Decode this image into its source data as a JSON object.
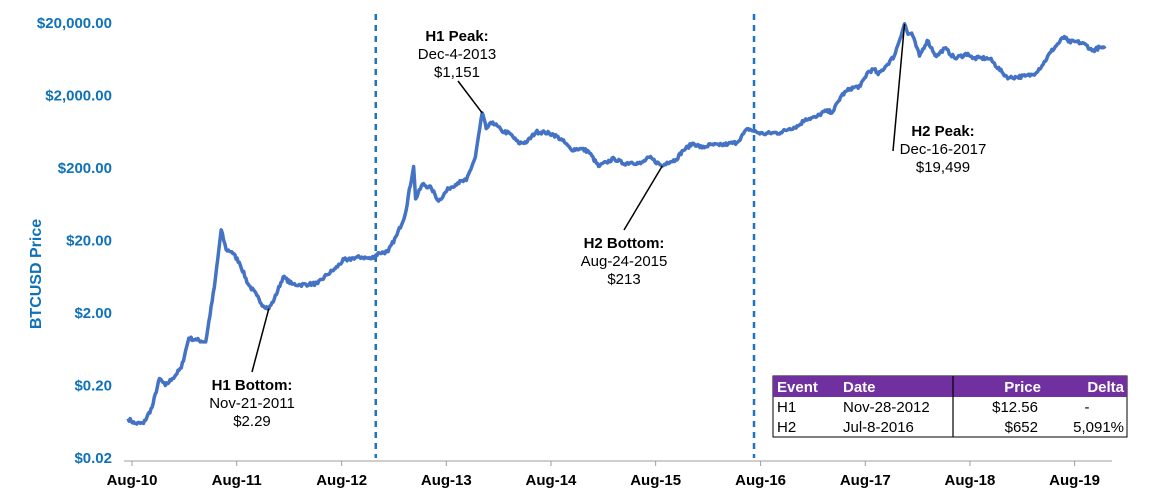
{
  "chart_data": {
    "type": "line",
    "ylabel": "BTCUSD Price",
    "yscale": "log",
    "ylim": [
      0.02,
      20000
    ],
    "y_ticks": [
      0.02,
      0.2,
      2,
      20,
      200,
      2000,
      20000
    ],
    "y_tick_labels": [
      "$0.02",
      "$0.20",
      "$2.00",
      "$20.00",
      "$200.00",
      "$2,000.00",
      "$20,000.00"
    ],
    "x_tick_labels": [
      "Aug-10",
      "Aug-11",
      "Aug-12",
      "Aug-13",
      "Aug-14",
      "Aug-15",
      "Aug-16",
      "Aug-17",
      "Aug-18",
      "Aug-19"
    ],
    "x_ticks": [
      "2010-08-01",
      "2011-08-01",
      "2012-08-01",
      "2013-08-01",
      "2014-08-01",
      "2015-08-01",
      "2016-08-01",
      "2017-08-01",
      "2018-08-01",
      "2019-08-01"
    ],
    "xlim": [
      "2010-07-18",
      "2019-11-15"
    ],
    "line_color": "#4472c4",
    "vline_color": "#1f74c0",
    "vlines": [
      "2012-11-28",
      "2016-07-09"
    ],
    "series": [
      {
        "x": [
          "2010-07-18",
          "2010-08-10",
          "2010-09-10",
          "2010-10-10",
          "2010-11-05",
          "2010-11-25",
          "2010-12-20",
          "2011-01-20",
          "2011-02-15",
          "2011-03-15",
          "2011-04-15",
          "2011-05-15",
          "2011-06-08",
          "2011-06-25",
          "2011-07-15",
          "2011-08-10",
          "2011-09-10",
          "2011-10-10",
          "2011-10-25",
          "2011-11-21",
          "2011-12-10",
          "2012-01-10",
          "2012-02-10",
          "2012-03-10",
          "2012-04-10",
          "2012-05-10",
          "2012-06-10",
          "2012-07-10",
          "2012-08-10",
          "2012-08-20",
          "2012-09-10",
          "2012-10-10",
          "2012-11-10",
          "2012-12-10",
          "2013-01-10",
          "2013-02-10",
          "2013-03-10",
          "2013-04-09",
          "2013-04-16",
          "2013-05-10",
          "2013-06-10",
          "2013-07-05",
          "2013-08-10",
          "2013-09-10",
          "2013-10-10",
          "2013-11-10",
          "2013-12-04",
          "2013-12-18",
          "2014-01-10",
          "2014-02-10",
          "2014-03-10",
          "2014-04-10",
          "2014-05-10",
          "2014-06-10",
          "2014-07-10",
          "2014-08-10",
          "2014-09-10",
          "2014-10-10",
          "2014-11-10",
          "2014-12-10",
          "2015-01-14",
          "2015-02-10",
          "2015-03-10",
          "2015-04-10",
          "2015-05-10",
          "2015-06-10",
          "2015-07-10",
          "2015-08-24",
          "2015-09-10",
          "2015-10-10",
          "2015-11-05",
          "2015-12-10",
          "2016-01-10",
          "2016-02-10",
          "2016-03-10",
          "2016-04-10",
          "2016-05-10",
          "2016-06-18",
          "2016-07-10",
          "2016-08-10",
          "2016-09-10",
          "2016-10-10",
          "2016-11-10",
          "2016-12-10",
          "2017-01-05",
          "2017-02-10",
          "2017-03-10",
          "2017-04-10",
          "2017-05-10",
          "2017-06-10",
          "2017-07-15",
          "2017-08-10",
          "2017-09-01",
          "2017-09-15",
          "2017-10-10",
          "2017-11-10",
          "2017-12-16",
          "2017-12-28",
          "2018-01-10",
          "2018-02-06",
          "2018-03-05",
          "2018-04-06",
          "2018-05-05",
          "2018-06-10",
          "2018-07-25",
          "2018-08-10",
          "2018-09-10",
          "2018-10-10",
          "2018-11-25",
          "2018-12-15",
          "2019-01-10",
          "2019-02-10",
          "2019-03-10",
          "2019-04-10",
          "2019-05-10",
          "2019-06-26",
          "2019-07-10",
          "2019-08-10",
          "2019-09-10",
          "2019-10-01",
          "2019-10-28",
          "2019-11-15"
        ],
        "values": [
          0.07,
          0.06,
          0.06,
          0.1,
          0.25,
          0.2,
          0.25,
          0.35,
          0.9,
          0.85,
          0.8,
          4.5,
          28,
          15,
          14,
          10,
          5,
          3.5,
          2.7,
          2.29,
          3.1,
          6.3,
          5,
          4.9,
          5,
          5.1,
          6.7,
          8.2,
          11,
          10.5,
          11.5,
          11.8,
          11.2,
          13.5,
          14,
          24,
          45,
          210,
          75,
          120,
          105,
          70,
          105,
          125,
          135,
          280,
          1151,
          700,
          860,
          650,
          600,
          440,
          460,
          630,
          620,
          580,
          480,
          360,
          370,
          340,
          210,
          240,
          270,
          230,
          240,
          230,
          280,
          213,
          240,
          260,
          350,
          440,
          380,
          420,
          410,
          430,
          450,
          700,
          640,
          590,
          610,
          615,
          700,
          760,
          950,
          1000,
          1200,
          1200,
          2000,
          2500,
          2700,
          4200,
          4600,
          3900,
          5000,
          7000,
          19499,
          14000,
          14500,
          7000,
          11500,
          6900,
          9000,
          6500,
          7600,
          6500,
          6600,
          6400,
          4000,
          3500,
          3600,
          3700,
          3900,
          5200,
          8000,
          13000,
          11000,
          11000,
          10000,
          8300,
          9200,
          8800
        ]
      }
    ],
    "annotations": [
      {
        "title": "H1 Bottom:",
        "date": "Nov-21-2011",
        "value": "$2.29",
        "x": "2011-11-21",
        "y": 2.29
      },
      {
        "title": "H1 Peak:",
        "date": "Dec-4-2013",
        "value": "$1,151",
        "x": "2013-12-04",
        "y": 1151
      },
      {
        "title": "H2 Bottom:",
        "date": "Aug-24-2015",
        "value": "$213",
        "x": "2015-08-24",
        "y": 213
      },
      {
        "title": "H2 Peak:",
        "date": "Dec-16-2017",
        "value": "$19,499",
        "x": "2017-12-16",
        "y": 19499
      }
    ],
    "table": {
      "header": [
        "Event",
        "Date",
        "Price",
        "Delta"
      ],
      "rows": [
        [
          "H1",
          "Nov-28-2012",
          "$12.56",
          "-"
        ],
        [
          "H2",
          "Jul-8-2016",
          "$652",
          "5,091%"
        ]
      ],
      "header_color": "#7030a0"
    }
  }
}
